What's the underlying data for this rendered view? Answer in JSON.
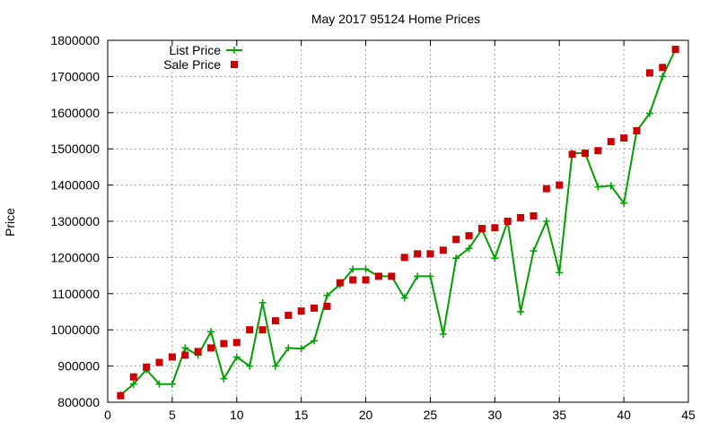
{
  "chart_data": {
    "type": "line",
    "title": "May 2017 95124 Home Prices",
    "xlabel": "",
    "ylabel": "Price",
    "xlim": [
      0,
      45
    ],
    "ylim": [
      800000,
      1800000
    ],
    "xticks": [
      0,
      5,
      10,
      15,
      20,
      25,
      30,
      35,
      40,
      45
    ],
    "yticks": [
      800000,
      900000,
      1000000,
      1100000,
      1200000,
      1300000,
      1400000,
      1500000,
      1600000,
      1700000,
      1800000
    ],
    "grid": true,
    "legend_position": "top-left",
    "series": [
      {
        "name": "List Price",
        "style": "line-points",
        "color": "#00a000",
        "marker": "plus",
        "x": [
          1,
          2,
          3,
          4,
          5,
          6,
          7,
          8,
          9,
          10,
          11,
          12,
          13,
          14,
          15,
          16,
          17,
          18,
          19,
          20,
          21,
          22,
          23,
          24,
          25,
          26,
          27,
          28,
          29,
          30,
          31,
          32,
          33,
          34,
          35,
          36,
          37,
          38,
          39,
          40,
          41,
          42,
          43,
          44
        ],
        "values": [
          820000,
          850000,
          890000,
          850000,
          850000,
          950000,
          930000,
          995000,
          865000,
          925000,
          900000,
          1075000,
          900000,
          950000,
          948000,
          970000,
          1095000,
          1125000,
          1168000,
          1168000,
          1148000,
          1148000,
          1088000,
          1148000,
          1148000,
          988000,
          1198000,
          1225000,
          1278000,
          1198000,
          1300000,
          1050000,
          1218000,
          1300000,
          1158000,
          1488000,
          1488000,
          1395000,
          1398000,
          1350000,
          1550000,
          1598000,
          1700000,
          1775000
        ]
      },
      {
        "name": "Sale Price",
        "style": "points",
        "color": "#cc0000",
        "marker": "square",
        "x": [
          1,
          2,
          3,
          4,
          5,
          6,
          7,
          8,
          9,
          10,
          11,
          12,
          13,
          14,
          15,
          16,
          17,
          18,
          19,
          20,
          21,
          22,
          23,
          24,
          25,
          26,
          27,
          28,
          29,
          30,
          31,
          32,
          33,
          34,
          35,
          36,
          37,
          38,
          39,
          40,
          41,
          42,
          43,
          44
        ],
        "values": [
          818000,
          870000,
          897000,
          910000,
          925000,
          930000,
          940000,
          950000,
          962000,
          965000,
          1000000,
          1000000,
          1025000,
          1040000,
          1052000,
          1060000,
          1065000,
          1130000,
          1138000,
          1138000,
          1148000,
          1148000,
          1200000,
          1210000,
          1210000,
          1220000,
          1250000,
          1260000,
          1280000,
          1282000,
          1300000,
          1310000,
          1315000,
          1390000,
          1400000,
          1485000,
          1488000,
          1495000,
          1520000,
          1530000,
          1550000,
          1710000,
          1725000,
          1775000
        ]
      }
    ]
  }
}
